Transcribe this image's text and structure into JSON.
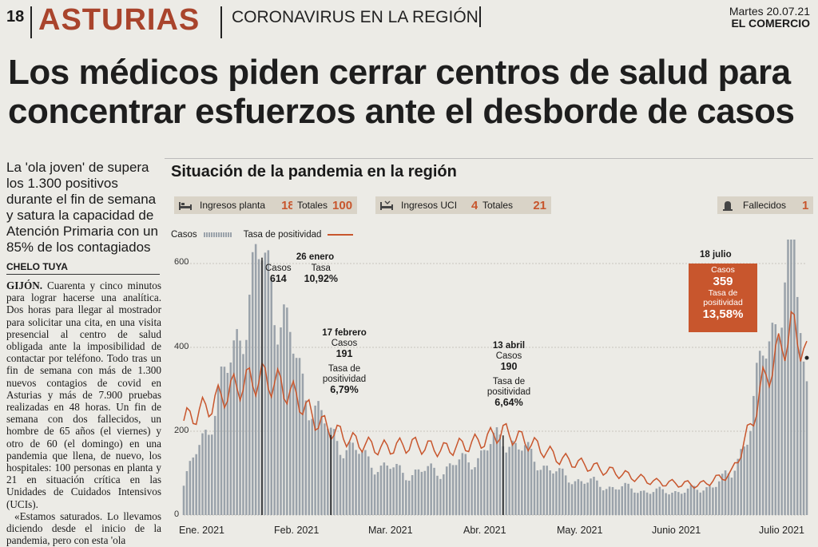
{
  "header": {
    "page_number": "18",
    "section": "ASTURIAS",
    "topic": "CORONAVIRUS EN LA REGIÓN",
    "date": "Martes 20.07.21",
    "newspaper": "EL COMERCIO"
  },
  "headline": "Los médicos piden cerrar centros de salud para concentrar esfuerzos ante el desborde de casos",
  "subheadline": "La 'ola joven' de supera los 1.300 positivos durante el fin de semana y satura la capacidad de Atención Primaria con un 85% de los contagiados",
  "byline": "CHELO TUYA",
  "body": {
    "dateline": "GIJÓN.",
    "text": " Cuarenta y cinco minutos para lograr hacerse una analítica. Dos horas para llegar al mostrador para solicitar una cita, en una visita presencial al centro de salud obligada ante la imposibilidad de contactar por teléfono. Todo tras un fin de semana con más de 1.300 nuevos contagios de covid en Asturias y más de 7.900 pruebas realizadas en 48 horas. Un fin de semana con dos fallecidos, un hombre de 65 años (el viernes) y otro de 60 (el domingo) en una pandemia que llena, de nuevo, los hospitales: 100 personas en planta y 21 en situación crítica en las Unidades de Cuidados Intensivos (UCIs).",
    "quote": "«Estamos saturados. Lo llevamos diciendo desde el inicio de la pandemia, pero con esta 'ola"
  },
  "chart": {
    "title": "Situación de la pandemia en la región",
    "stats": {
      "planta_label": "Ingresos planta",
      "planta_value": "18",
      "planta_total_label": "Totales",
      "planta_total_value": "100",
      "uci_label": "Ingresos UCI",
      "uci_value": "4",
      "uci_total_label": "Totales",
      "uci_total_value": "21",
      "fallecidos_label": "Fallecidos",
      "fallecidos_value": "1"
    },
    "legend": {
      "casos": "Casos",
      "tasa": "Tasa de positividad"
    },
    "annotations": {
      "jan": {
        "date": "26 enero",
        "casos_label": "Casos",
        "casos": "614",
        "tasa_label": "Tasa",
        "tasa": "10,92%"
      },
      "feb": {
        "date": "17 febrero",
        "casos_label": "Casos",
        "casos": "191",
        "tasa_label": "Tasa de positividad",
        "tasa": "6,79%"
      },
      "apr": {
        "date": "13 abril",
        "casos_label": "Casos",
        "casos": "190",
        "tasa_label": "Tasa de positividad",
        "tasa": "6,64%"
      },
      "jul": {
        "date": "18 julio",
        "casos_label": "Casos",
        "casos": "359",
        "tasa_label": "Tasa de positividad",
        "tasa": "13,58%"
      }
    },
    "colors": {
      "bars": "#9aa2aa",
      "line": "#c8562d",
      "accent": "#c8562d"
    }
  },
  "chart_data": {
    "type": "bar",
    "title": "Situación de la pandemia en la región",
    "xlabel": "",
    "ylabel": "",
    "ylim": [
      0,
      600
    ],
    "yticks": [
      0,
      200,
      400,
      600
    ],
    "xtick_labels": [
      "Ene. 2021",
      "Feb. 2021",
      "Mar. 2021",
      "Abr. 2021",
      "May. 2021",
      "Junio 2021",
      "Julio 2021"
    ],
    "x_range": [
      "2021-01-01",
      "2021-07-19"
    ],
    "grid": true,
    "legend_position": "top-left",
    "series": [
      {
        "name": "Casos",
        "type": "bar",
        "points": [
          [
            "2021-01-01",
            70
          ],
          [
            "2021-01-05",
            150
          ],
          [
            "2021-01-10",
            240
          ],
          [
            "2021-01-15",
            340
          ],
          [
            "2021-01-20",
            480
          ],
          [
            "2021-01-22",
            520
          ],
          [
            "2021-01-26",
            614
          ],
          [
            "2021-01-29",
            570
          ],
          [
            "2021-02-03",
            430
          ],
          [
            "2021-02-08",
            320
          ],
          [
            "2021-02-13",
            240
          ],
          [
            "2021-02-17",
            191
          ],
          [
            "2021-02-25",
            150
          ],
          [
            "2021-03-05",
            115
          ],
          [
            "2021-03-15",
            100
          ],
          [
            "2021-03-25",
            110
          ],
          [
            "2021-04-05",
            140
          ],
          [
            "2021-04-13",
            190
          ],
          [
            "2021-04-22",
            140
          ],
          [
            "2021-05-01",
            95
          ],
          [
            "2021-05-15",
            70
          ],
          [
            "2021-06-01",
            55
          ],
          [
            "2021-06-15",
            60
          ],
          [
            "2021-06-25",
            95
          ],
          [
            "2021-07-01",
            220
          ],
          [
            "2021-07-05",
            380
          ],
          [
            "2021-07-10",
            500
          ],
          [
            "2021-07-13",
            580
          ],
          [
            "2021-07-15",
            640
          ],
          [
            "2021-07-18",
            359
          ],
          [
            "2021-07-19",
            320
          ]
        ]
      },
      {
        "name": "Tasa de positividad",
        "type": "line",
        "axis_min": 0,
        "axis_max": 20,
        "points": [
          [
            "2021-01-01",
            7.5
          ],
          [
            "2021-01-08",
            8.5
          ],
          [
            "2021-01-15",
            9.8
          ],
          [
            "2021-01-20",
            10.5
          ],
          [
            "2021-01-26",
            10.92
          ],
          [
            "2021-02-01",
            10.3
          ],
          [
            "2021-02-07",
            9.1
          ],
          [
            "2021-02-12",
            7.6
          ],
          [
            "2021-02-17",
            6.79
          ],
          [
            "2021-02-25",
            5.8
          ],
          [
            "2021-03-05",
            5.3
          ],
          [
            "2021-03-15",
            5.6
          ],
          [
            "2021-03-25",
            5.2
          ],
          [
            "2021-04-05",
            5.8
          ],
          [
            "2021-04-13",
            6.64
          ],
          [
            "2021-04-22",
            5.7
          ],
          [
            "2021-05-01",
            4.5
          ],
          [
            "2021-05-15",
            3.6
          ],
          [
            "2021-06-01",
            2.6
          ],
          [
            "2021-06-15",
            2.4
          ],
          [
            "2021-06-25",
            3.3
          ],
          [
            "2021-07-01",
            7.0
          ],
          [
            "2021-07-05",
            10.5
          ],
          [
            "2021-07-10",
            13.0
          ],
          [
            "2021-07-14",
            14.8
          ],
          [
            "2021-07-18",
            13.58
          ],
          [
            "2021-07-19",
            12.5
          ]
        ]
      }
    ]
  }
}
